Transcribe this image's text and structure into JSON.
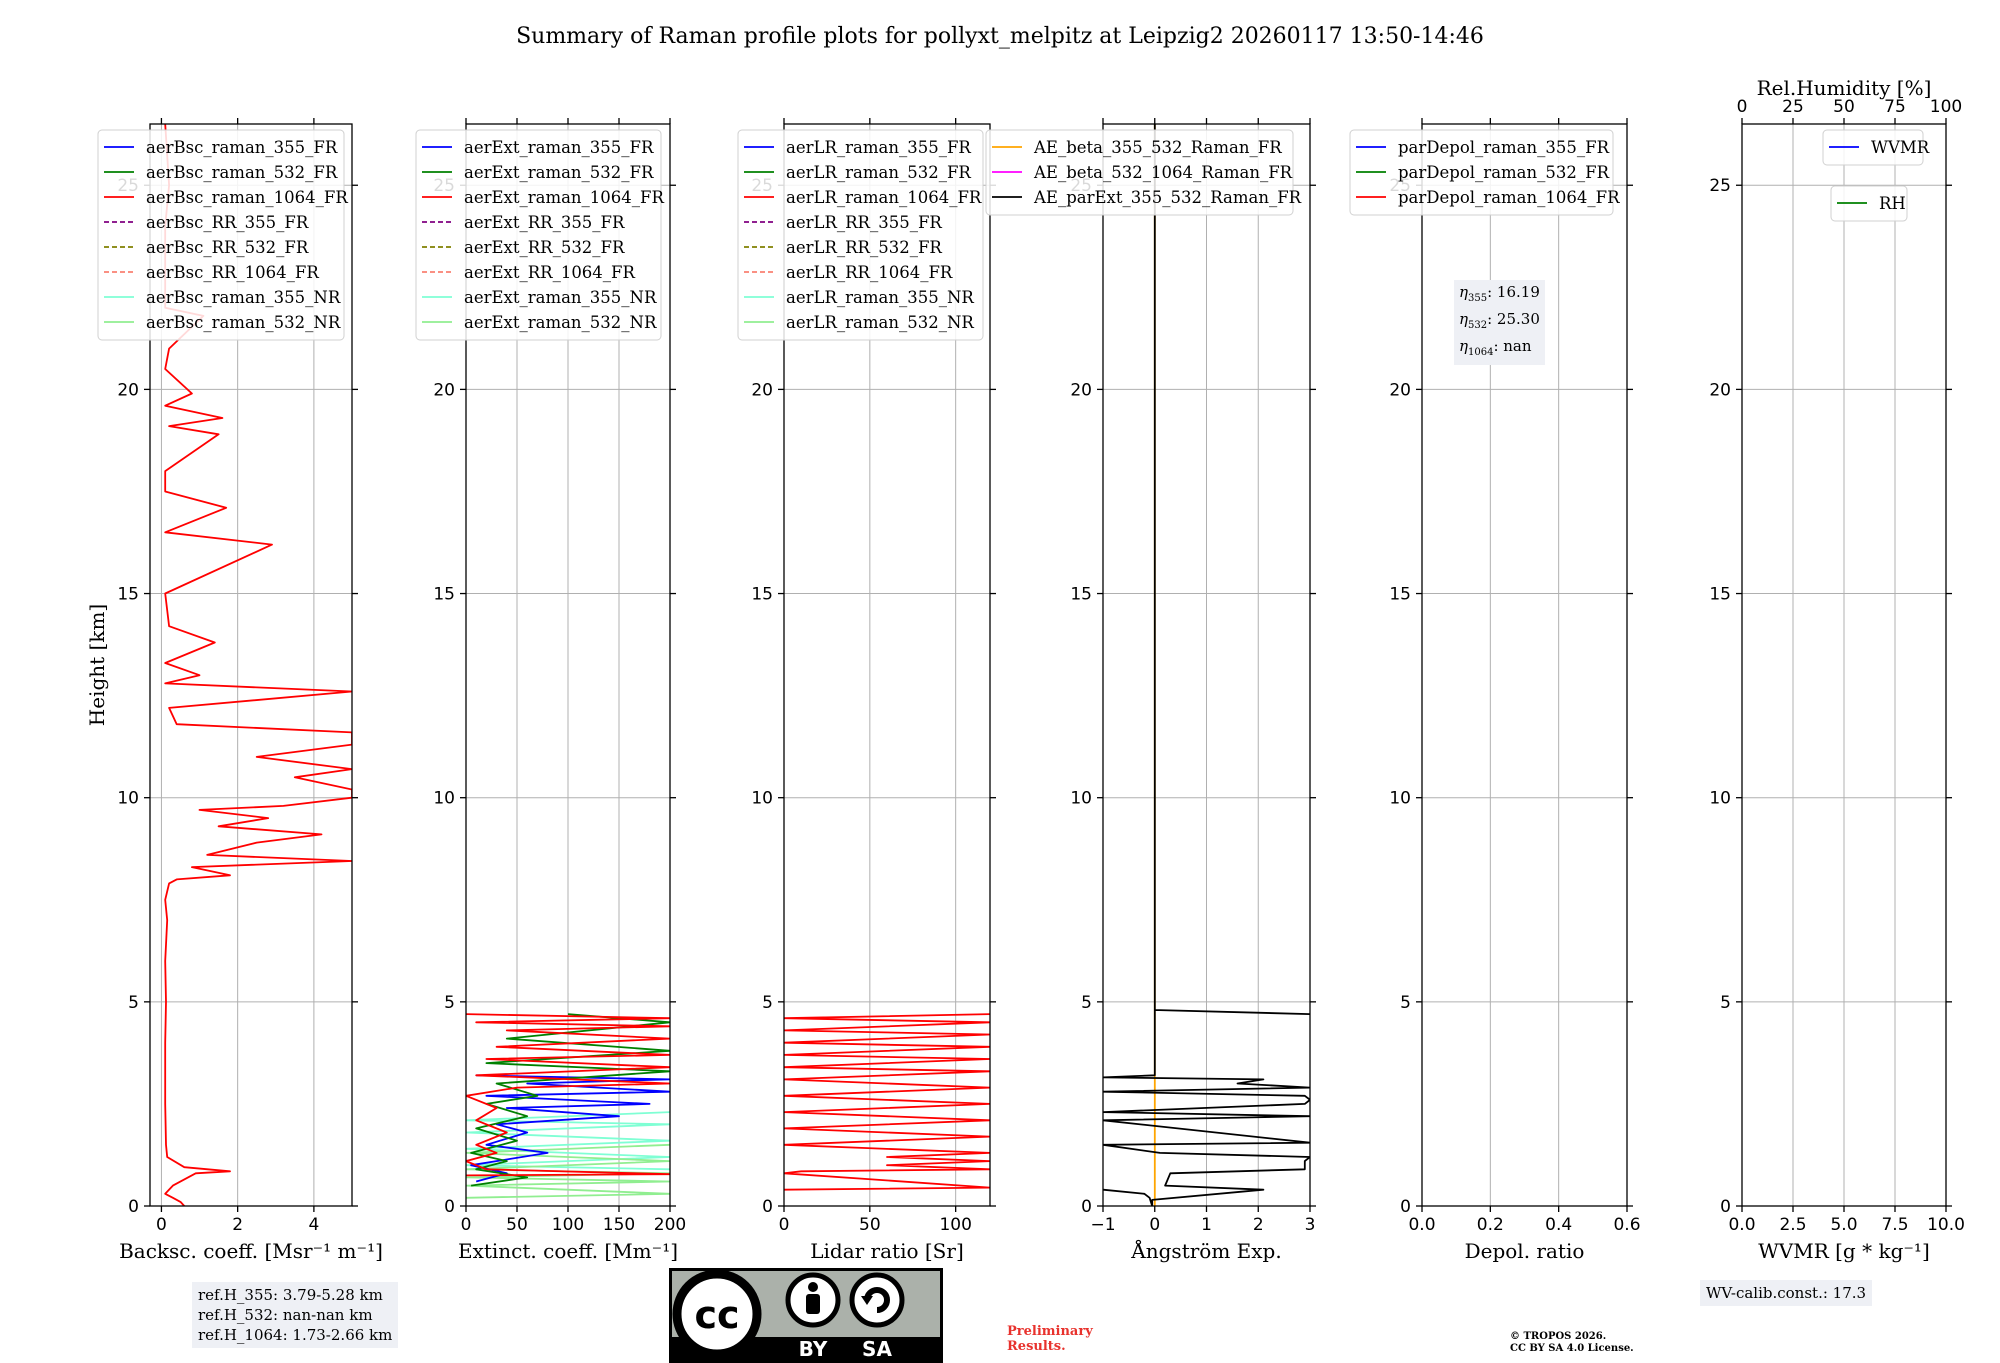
{
  "figure_title": "Summary of Raman profile plots for pollyxt_melpitz at Leipzig2 20260117 13:50-14:46",
  "ylabel": "Height [km]",
  "ref_box": {
    "line1": "ref.H_355: 3.79-5.28 km",
    "line2": "ref.H_532: nan-nan km",
    "line3": "ref.H_1064: 1.73-2.66 km"
  },
  "eta_box": {
    "l355_sym": "η",
    "l355_sub": "355",
    "l355_val": ": 16.19",
    "l532_sym": "η",
    "l532_sub": "532",
    "l532_val": ": 25.30",
    "l1064_sym": "η",
    "l1064_sub": "1064",
    "l1064_val": ": nan"
  },
  "wv_box": "WV-calib.const.: 17.3",
  "preliminary": [
    "Preliminary",
    "Results."
  ],
  "copyright": [
    "© TROPOS 2026.",
    "CC BY SA 4.0 License."
  ],
  "license_logo": {
    "cc": "cc",
    "by": "BY",
    "sa": "SA"
  },
  "colors": {
    "blue": "#0000ff",
    "green": "#008000",
    "red": "#ff0000",
    "purple": "#800080",
    "olive": "#808000",
    "salmon": "#fa8072",
    "cyan": "#7fffd4",
    "lightgreen": "#90ee90",
    "orange": "#ffa500",
    "magenta": "#ff00ff",
    "black": "#000000"
  },
  "chart_data": [
    {
      "type": "line",
      "id": "backscatter",
      "xlabel": "Backsc. coeff. [Msr⁻¹ m⁻¹]",
      "ylabel": "Height [km]",
      "xlim": [
        -0.3,
        5
      ],
      "ylim": [
        0,
        26.5
      ],
      "xticks": [
        0,
        2,
        4
      ],
      "yticks": [
        0,
        5,
        10,
        15,
        20,
        25
      ],
      "legend": [
        "aerBsc_raman_355_FR",
        "aerBsc_raman_532_FR",
        "aerBsc_raman_1064_FR",
        "aerBsc_RR_355_FR",
        "aerBsc_RR_532_FR",
        "aerBsc_RR_1064_FR",
        "aerBsc_raman_355_NR",
        "aerBsc_raman_532_NR"
      ],
      "legend_styles": [
        "blue",
        "green",
        "red",
        "purple-dash",
        "olive-dash",
        "salmon-dash",
        "cyan",
        "lightgreen"
      ],
      "series": [
        {
          "name": "aerBsc_raman_1064_FR",
          "color": "red",
          "points": [
            [
              0.6,
              0
            ],
            [
              0.5,
              0.1
            ],
            [
              0.3,
              0.2
            ],
            [
              0.1,
              0.3
            ],
            [
              0.3,
              0.5
            ],
            [
              0.9,
              0.8
            ],
            [
              1.8,
              0.85
            ],
            [
              0.6,
              0.95
            ],
            [
              0.15,
              1.2
            ],
            [
              0.12,
              1.5
            ],
            [
              0.1,
              2.5
            ],
            [
              0.1,
              4
            ],
            [
              0.12,
              5
            ],
            [
              0.1,
              6
            ],
            [
              0.15,
              7
            ],
            [
              0.1,
              7.5
            ],
            [
              0.2,
              7.9
            ],
            [
              0.4,
              8.0
            ],
            [
              1.8,
              8.1
            ],
            [
              0.8,
              8.3
            ],
            [
              5,
              8.45
            ],
            [
              1.2,
              8.6
            ],
            [
              2.5,
              8.9
            ],
            [
              4.2,
              9.1
            ],
            [
              1.5,
              9.3
            ],
            [
              2.8,
              9.5
            ],
            [
              1.0,
              9.7
            ],
            [
              3.2,
              9.8
            ],
            [
              5,
              10.0
            ],
            [
              5,
              10.2
            ],
            [
              3.5,
              10.5
            ],
            [
              5,
              10.7
            ],
            [
              2.5,
              11.0
            ],
            [
              5,
              11.3
            ],
            [
              5,
              11.6
            ],
            [
              0.4,
              11.8
            ],
            [
              0.2,
              12.2
            ],
            [
              5,
              12.6
            ],
            [
              0.1,
              12.8
            ],
            [
              1.0,
              13.0
            ],
            [
              0.1,
              13.3
            ],
            [
              1.4,
              13.8
            ],
            [
              0.2,
              14.2
            ],
            [
              0.1,
              15
            ],
            [
              2.9,
              16.2
            ],
            [
              0.1,
              16.5
            ],
            [
              1.7,
              17.1
            ],
            [
              0.1,
              17.5
            ],
            [
              0.1,
              18.0
            ],
            [
              1.5,
              18.9
            ],
            [
              0.2,
              19.1
            ],
            [
              1.6,
              19.3
            ],
            [
              0.1,
              19.6
            ],
            [
              0.8,
              19.9
            ],
            [
              0.1,
              20.5
            ],
            [
              0.2,
              21.0
            ],
            [
              1.1,
              21.8
            ],
            [
              0.1,
              22.0
            ],
            [
              0.1,
              24
            ],
            [
              0.2,
              25
            ],
            [
              0.1,
              26.5
            ]
          ]
        }
      ]
    },
    {
      "type": "line",
      "id": "extinction",
      "xlabel": "Extinct. coeff. [Mm⁻¹]",
      "xlim": [
        0,
        200
      ],
      "ylim": [
        0,
        26.5
      ],
      "xticks": [
        0,
        50,
        100,
        150,
        200
      ],
      "yticks": [
        0,
        5,
        10,
        15,
        20,
        25
      ],
      "legend": [
        "aerExt_raman_355_FR",
        "aerExt_raman_532_FR",
        "aerExt_raman_1064_FR",
        "aerExt_RR_355_FR",
        "aerExt_RR_532_FR",
        "aerExt_RR_1064_FR",
        "aerExt_raman_355_NR",
        "aerExt_raman_532_NR"
      ],
      "legend_styles": [
        "blue",
        "green",
        "red",
        "purple-dash",
        "olive-dash",
        "salmon-dash",
        "cyan",
        "lightgreen"
      ],
      "series": [
        {
          "name": "aerExt_raman_355_NR",
          "color": "cyan",
          "points": [
            [
              200,
              0.9
            ],
            [
              0,
              1.0
            ],
            [
              200,
              1.2
            ],
            [
              0,
              1.4
            ],
            [
              200,
              1.6
            ],
            [
              0,
              1.8
            ],
            [
              200,
              2.0
            ],
            [
              0,
              2.1
            ],
            [
              200,
              2.3
            ]
          ]
        },
        {
          "name": "aerExt_raman_532_NR",
          "color": "lightgreen",
          "points": [
            [
              0,
              0.2
            ],
            [
              200,
              0.3
            ],
            [
              0,
              0.5
            ],
            [
              200,
              0.6
            ],
            [
              0,
              0.7
            ],
            [
              200,
              0.8
            ],
            [
              0,
              0.9
            ],
            [
              200,
              1.1
            ],
            [
              0,
              1.3
            ],
            [
              200,
              1.5
            ]
          ]
        },
        {
          "name": "aerExt_raman_355_FR",
          "color": "blue",
          "points": [
            [
              10,
              0.6
            ],
            [
              40,
              0.8
            ],
            [
              5,
              1.0
            ],
            [
              80,
              1.3
            ],
            [
              20,
              1.5
            ],
            [
              60,
              1.8
            ],
            [
              30,
              2.0
            ],
            [
              150,
              2.2
            ],
            [
              40,
              2.4
            ],
            [
              180,
              2.5
            ],
            [
              20,
              2.7
            ],
            [
              200,
              2.8
            ],
            [
              60,
              3.0
            ],
            [
              200,
              3.1
            ],
            [
              10,
              3.2
            ]
          ]
        },
        {
          "name": "aerExt_raman_532_FR",
          "color": "green",
          "points": [
            [
              5,
              0.5
            ],
            [
              60,
              0.7
            ],
            [
              10,
              0.9
            ],
            [
              40,
              1.1
            ],
            [
              5,
              1.3
            ],
            [
              50,
              1.6
            ],
            [
              10,
              1.9
            ],
            [
              60,
              2.2
            ],
            [
              20,
              2.5
            ],
            [
              70,
              2.7
            ],
            [
              30,
              3.0
            ],
            [
              200,
              3.3
            ],
            [
              20,
              3.5
            ],
            [
              200,
              3.8
            ],
            [
              40,
              4.1
            ],
            [
              200,
              4.5
            ],
            [
              100,
              4.7
            ]
          ]
        },
        {
          "name": "aerExt_raman_1064_FR",
          "color": "red",
          "points": [
            [
              0,
              0.75
            ],
            [
              200,
              0.78
            ],
            [
              20,
              0.9
            ],
            [
              0,
              1.1
            ],
            [
              30,
              1.3
            ],
            [
              10,
              1.5
            ],
            [
              40,
              1.8
            ],
            [
              10,
              2.1
            ],
            [
              30,
              2.4
            ],
            [
              0,
              2.7
            ],
            [
              50,
              2.9
            ],
            [
              200,
              3.0
            ],
            [
              10,
              3.2
            ],
            [
              200,
              3.4
            ],
            [
              20,
              3.6
            ],
            [
              200,
              3.7
            ],
            [
              30,
              3.9
            ],
            [
              200,
              4.1
            ],
            [
              40,
              4.3
            ],
            [
              200,
              4.4
            ],
            [
              10,
              4.5
            ],
            [
              200,
              4.6
            ],
            [
              0,
              4.7
            ]
          ]
        }
      ]
    },
    {
      "type": "line",
      "id": "lidar_ratio",
      "xlabel": "Lidar ratio [Sr]",
      "xlim": [
        0,
        120
      ],
      "ylim": [
        0,
        26.5
      ],
      "xticks": [
        0,
        50,
        100
      ],
      "yticks": [
        0,
        5,
        10,
        15,
        20,
        25
      ],
      "legend": [
        "aerLR_raman_355_FR",
        "aerLR_raman_532_FR",
        "aerLR_raman_1064_FR",
        "aerLR_RR_355_FR",
        "aerLR_RR_532_FR",
        "aerLR_RR_1064_FR",
        "aerLR_raman_355_NR",
        "aerLR_raman_532_NR"
      ],
      "legend_styles": [
        "blue",
        "green",
        "red",
        "purple-dash",
        "olive-dash",
        "salmon-dash",
        "cyan",
        "lightgreen"
      ],
      "series": [
        {
          "name": "aerLR_raman_1064_FR",
          "color": "red",
          "points": [
            [
              0,
              0.4
            ],
            [
              120,
              0.45
            ],
            [
              0,
              0.8
            ],
            [
              10,
              0.85
            ],
            [
              120,
              0.9
            ],
            [
              60,
              1.0
            ],
            [
              120,
              1.1
            ],
            [
              60,
              1.2
            ],
            [
              120,
              1.3
            ],
            [
              0,
              1.5
            ],
            [
              120,
              1.7
            ],
            [
              0,
              1.9
            ],
            [
              120,
              2.1
            ],
            [
              0,
              2.3
            ],
            [
              120,
              2.5
            ],
            [
              0,
              2.7
            ],
            [
              120,
              2.9
            ],
            [
              0,
              3.1
            ],
            [
              120,
              3.3
            ],
            [
              0,
              3.4
            ],
            [
              120,
              3.6
            ],
            [
              0,
              3.7
            ],
            [
              120,
              3.9
            ],
            [
              0,
              4.0
            ],
            [
              120,
              4.2
            ],
            [
              0,
              4.3
            ],
            [
              120,
              4.5
            ],
            [
              0,
              4.6
            ],
            [
              120,
              4.7
            ]
          ]
        }
      ]
    },
    {
      "type": "line",
      "id": "angstrom",
      "xlabel": "Ångström Exp.",
      "xlim": [
        -1,
        3
      ],
      "ylim": [
        0,
        26.5
      ],
      "xticks": [
        -1,
        0,
        1,
        2,
        3
      ],
      "yticks": [
        0,
        5,
        10,
        15,
        20,
        25
      ],
      "legend": [
        "AE_beta_355_532_Raman_FR",
        "AE_beta_532_1064_Raman_FR",
        "AE_parExt_355_532_Raman_FR"
      ],
      "legend_styles": [
        "orange",
        "magenta",
        "black"
      ],
      "series": [
        {
          "name": "AE_beta_355_532_Raman_FR",
          "color": "orange",
          "points": [
            [
              0,
              0
            ],
            [
              0,
              26.5
            ]
          ]
        },
        {
          "name": "AE_parExt_355_532_Raman_FR",
          "color": "black",
          "points": [
            [
              -1,
              0.4
            ],
            [
              -0.2,
              0.3
            ],
            [
              -0.1,
              0.2
            ],
            [
              -0.05,
              0
            ],
            [
              -0.05,
              0.15
            ],
            [
              2.1,
              0.4
            ],
            [
              0.2,
              0.5
            ],
            [
              0.3,
              0.8
            ],
            [
              2.9,
              0.9
            ],
            [
              2.9,
              1.1
            ],
            [
              3,
              1.2
            ],
            [
              0.1,
              1.3
            ],
            [
              -1,
              1.5
            ],
            [
              3,
              1.55
            ],
            [
              -1,
              2.1
            ],
            [
              3,
              2.2
            ],
            [
              -1,
              2.3
            ],
            [
              2.9,
              2.5
            ],
            [
              3,
              2.6
            ],
            [
              2.9,
              2.7
            ],
            [
              -1,
              2.8
            ],
            [
              3,
              2.9
            ],
            [
              1.6,
              3.0
            ],
            [
              2.1,
              3.1
            ],
            [
              -1,
              3.15
            ],
            [
              0,
              3.2
            ],
            [
              0,
              4.8
            ],
            [
              3,
              4.7
            ],
            [
              0,
              4.8
            ],
            [
              0,
              26.5
            ]
          ]
        }
      ]
    },
    {
      "type": "line",
      "id": "depolarization",
      "xlabel": "Depol. ratio",
      "xlim": [
        0,
        0.6
      ],
      "ylim": [
        0,
        26.5
      ],
      "xticks": [
        0.0,
        0.2,
        0.4,
        0.6
      ],
      "yticks": [
        0,
        5,
        10,
        15,
        20,
        25
      ],
      "legend": [
        "parDepol_raman_355_FR",
        "parDepol_raman_532_FR",
        "parDepol_raman_1064_FR"
      ],
      "legend_styles": [
        "blue",
        "green",
        "red"
      ],
      "series": []
    },
    {
      "type": "line",
      "id": "wvmr",
      "xlabel": "WVMR [g * kg⁻¹]",
      "x2label": "Rel.Humidity [%]",
      "xlim": [
        0,
        10
      ],
      "x2lim": [
        0,
        100
      ],
      "ylim": [
        0,
        26.5
      ],
      "xticks": [
        0.0,
        2.5,
        5.0,
        7.5,
        10.0
      ],
      "x2ticks": [
        0,
        25,
        50,
        75,
        100
      ],
      "yticks": [
        0,
        5,
        10,
        15,
        20,
        25
      ],
      "legend": [
        "WVMR"
      ],
      "legend_styles": [
        "blue"
      ],
      "legend2": [
        "RH"
      ],
      "legend2_styles": [
        "green"
      ],
      "series": []
    }
  ]
}
